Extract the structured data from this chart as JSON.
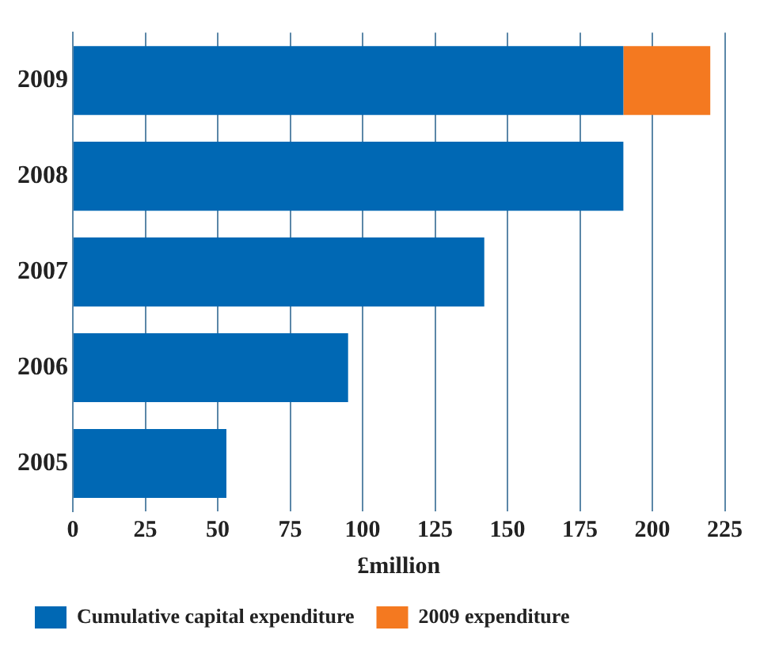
{
  "chart_data": {
    "type": "bar",
    "orientation": "horizontal",
    "stacked": true,
    "xlabel": "£million",
    "categories": [
      "2009",
      "2008",
      "2007",
      "2006",
      "2005"
    ],
    "series": [
      {
        "name": "Cumulative capital expenditure",
        "color": "#0068b4",
        "values": [
          190,
          190,
          142,
          95,
          53
        ]
      },
      {
        "name": "2009 expenditure",
        "color": "#f47920",
        "values": [
          30,
          null,
          null,
          null,
          null
        ]
      }
    ],
    "xlim": [
      0,
      225
    ],
    "xticks": [
      0,
      25,
      50,
      75,
      100,
      125,
      150,
      175,
      200,
      225
    ],
    "grid": "x",
    "legend": "bottom"
  }
}
